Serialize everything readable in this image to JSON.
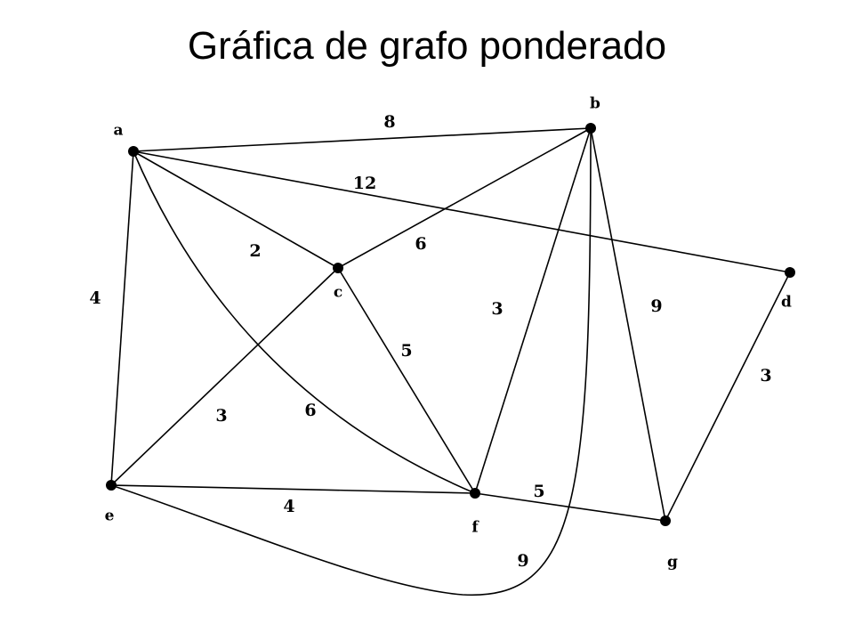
{
  "title": "Gráfica de grafo ponderado",
  "colors": {
    "stroke": "#000000",
    "background": "#ffffff"
  },
  "graph": {
    "nodes": [
      {
        "id": "a",
        "label": "a"
      },
      {
        "id": "b",
        "label": "b"
      },
      {
        "id": "c",
        "label": "c"
      },
      {
        "id": "d",
        "label": "d"
      },
      {
        "id": "e",
        "label": "e"
      },
      {
        "id": "f",
        "label": "f"
      },
      {
        "id": "g",
        "label": "g"
      }
    ],
    "edges": [
      {
        "from": "a",
        "to": "b",
        "weight": "8"
      },
      {
        "from": "a",
        "to": "d",
        "weight": "12"
      },
      {
        "from": "a",
        "to": "c",
        "weight": "2"
      },
      {
        "from": "b",
        "to": "c",
        "weight": "6"
      },
      {
        "from": "a",
        "to": "e",
        "weight": "4"
      },
      {
        "from": "a",
        "to": "f",
        "weight": "6"
      },
      {
        "from": "c",
        "to": "e",
        "weight": "3"
      },
      {
        "from": "c",
        "to": "f",
        "weight": "5"
      },
      {
        "from": "b",
        "to": "f",
        "weight": "3"
      },
      {
        "from": "b",
        "to": "g",
        "weight": "9"
      },
      {
        "from": "d",
        "to": "g",
        "weight": "3"
      },
      {
        "from": "e",
        "to": "f",
        "weight": "4"
      },
      {
        "from": "f",
        "to": "g",
        "weight": "5"
      },
      {
        "from": "e",
        "to": "b",
        "weight": "9"
      }
    ]
  }
}
